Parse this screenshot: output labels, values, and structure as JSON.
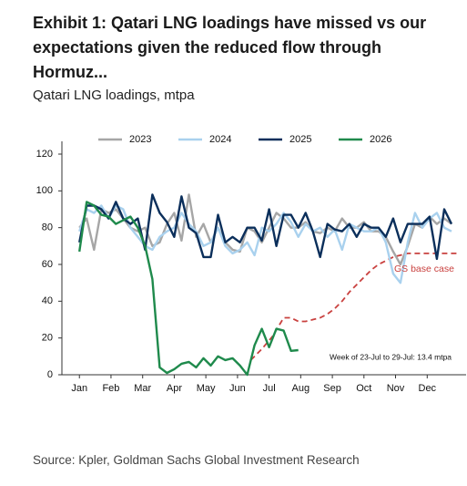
{
  "chart_data": {
    "type": "line",
    "title": "Exhibit 1: Qatari LNG loadings have missed vs our expectations given the reduced flow through Hormuz...",
    "subtitle": "Qatari LNG loadings, mtpa",
    "source": "Source: Kpler, Goldman Sachs Global Investment Research",
    "annotation": "Week of 23-Jul to 29-Jul: 13.4 mtpa",
    "x": [
      0,
      1,
      2,
      3,
      4,
      5,
      6,
      7,
      8,
      9,
      10,
      11,
      12,
      13,
      14,
      15,
      16,
      17,
      18,
      19,
      20,
      21,
      22,
      23,
      24,
      25,
      26,
      27,
      28,
      29,
      30,
      31,
      32,
      33,
      34,
      35,
      36,
      37,
      38,
      39,
      40,
      41,
      42,
      43,
      44,
      45,
      46,
      47,
      48,
      49,
      50,
      51
    ],
    "xlim": [
      -2.4,
      53
    ],
    "xticks": [
      {
        "value": 0,
        "label": "Jan"
      },
      {
        "value": 4.33,
        "label": "Feb"
      },
      {
        "value": 8.67,
        "label": "Mar"
      },
      {
        "value": 13,
        "label": "Apr"
      },
      {
        "value": 17.33,
        "label": "May"
      },
      {
        "value": 21.67,
        "label": "Jun"
      },
      {
        "value": 26,
        "label": "Jul"
      },
      {
        "value": 30.33,
        "label": "Aug"
      },
      {
        "value": 34.67,
        "label": "Sep"
      },
      {
        "value": 39,
        "label": "Oct"
      },
      {
        "value": 43.33,
        "label": "Nov"
      },
      {
        "value": 47.67,
        "label": "Dec"
      }
    ],
    "ylim": [
      0,
      120
    ],
    "yticks": [
      0,
      20,
      40,
      60,
      80,
      100,
      120
    ],
    "grid": false,
    "legend": "top",
    "series": [
      {
        "name": "2023",
        "color": "#a6a6a6",
        "values": [
          80,
          85,
          68,
          90,
          88,
          90,
          85,
          80,
          78,
          80,
          70,
          72,
          82,
          88,
          73,
          98,
          75,
          82,
          72,
          80,
          72,
          68,
          67,
          80,
          78,
          72,
          80,
          88,
          85,
          80,
          80,
          83,
          78,
          77,
          80,
          78,
          85,
          80,
          80,
          83,
          78,
          78,
          75,
          67,
          60,
          70,
          82,
          80,
          86,
          82,
          85,
          82
        ]
      },
      {
        "name": "2024",
        "color": "#a9d1ee",
        "values": [
          78,
          90,
          88,
          92,
          85,
          92,
          90,
          80,
          75,
          70,
          68,
          75,
          78,
          80,
          88,
          82,
          78,
          70,
          72,
          80,
          70,
          66,
          68,
          72,
          65,
          80,
          78,
          82,
          88,
          83,
          75,
          82,
          78,
          80,
          75,
          79,
          68,
          82,
          80,
          78,
          78,
          80,
          72,
          55,
          50,
          72,
          88,
          80,
          85,
          88,
          80,
          78
        ]
      },
      {
        "name": "2025",
        "color": "#0b2f5b",
        "values": [
          72,
          92,
          92,
          90,
          85,
          94,
          85,
          82,
          85,
          68,
          98,
          88,
          83,
          75,
          97,
          80,
          77,
          64,
          64,
          87,
          72,
          75,
          72,
          80,
          80,
          73,
          90,
          70,
          87,
          87,
          80,
          88,
          78,
          64,
          82,
          79,
          78,
          82,
          75,
          82,
          80,
          80,
          75,
          85,
          72,
          82,
          82,
          82,
          86,
          63,
          90,
          82
        ]
      },
      {
        "name": "2026",
        "color": "#1f8a4c",
        "x": [
          0,
          1,
          2,
          3,
          4,
          5,
          6,
          7,
          8,
          9,
          10,
          11,
          12,
          13,
          14,
          15,
          16,
          17,
          18,
          19,
          20,
          21,
          22,
          23,
          24,
          25,
          26,
          27,
          28,
          29,
          30
        ],
        "values": [
          67,
          94,
          92,
          87,
          86,
          82,
          84,
          86,
          80,
          70,
          52,
          4,
          1,
          3,
          6,
          7,
          4,
          9,
          5,
          10,
          8,
          9,
          5,
          0,
          16,
          25,
          15,
          25,
          24,
          13,
          13.4
        ]
      },
      {
        "name": "GS base case",
        "color": "#c9413f",
        "dash": true,
        "x": [
          23.5,
          25,
          26.5,
          28,
          29,
          30,
          31,
          32,
          33,
          34,
          35,
          36,
          37,
          38,
          39,
          40,
          41,
          42,
          43,
          44,
          45,
          47,
          49,
          51,
          52
        ],
        "values": [
          8,
          14,
          21,
          31,
          31,
          29,
          29,
          30,
          31,
          33,
          36,
          40,
          45,
          49,
          53,
          57,
          60,
          62,
          64,
          65,
          66,
          66,
          66,
          66,
          66
        ]
      }
    ]
  }
}
